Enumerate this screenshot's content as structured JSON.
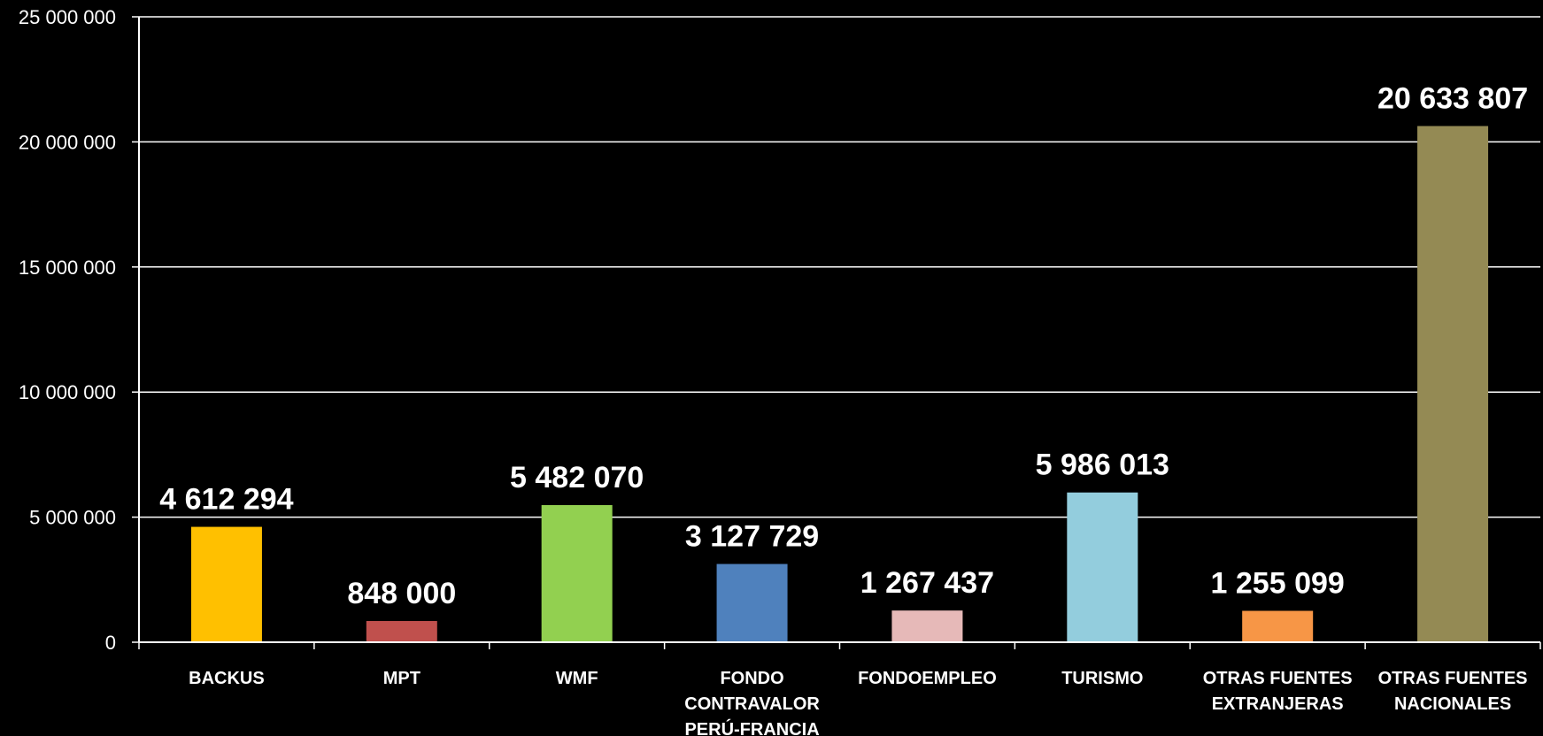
{
  "chart_data": {
    "type": "bar",
    "title": "",
    "xlabel": "",
    "ylabel": "",
    "ylim": [
      0,
      25000000
    ],
    "yticks": [
      0,
      5000000,
      10000000,
      15000000,
      20000000,
      25000000
    ],
    "ytick_labels": [
      "0",
      "5 000 000",
      "10 000 000",
      "15 000 000",
      "20 000 000",
      "25 000 000"
    ],
    "grid": true,
    "legend": "none",
    "categories": [
      [
        "BACKUS"
      ],
      [
        "MPT"
      ],
      [
        "WMF"
      ],
      [
        "FONDO",
        "CONTRAVALOR",
        "PERÚ-FRANCIA"
      ],
      [
        "FONDOEMPLEO"
      ],
      [
        "TURISMO"
      ],
      [
        "OTRAS FUENTES",
        "EXTRANJERAS"
      ],
      [
        "OTRAS FUENTES",
        "NACIONALES"
      ]
    ],
    "values": [
      4612294,
      848000,
      5482070,
      3127729,
      1267437,
      5986013,
      1255099,
      20633807
    ],
    "data_labels": [
      "4 612 294",
      "848 000",
      "5 482 070",
      "3 127 729",
      "1 267 437",
      "5 986 013",
      "1 255 099",
      "20 633 807"
    ],
    "colors": [
      "#FFC000",
      "#C0504D",
      "#92D050",
      "#4F81BD",
      "#E6B9B8",
      "#93CDDD",
      "#F79646",
      "#948A54"
    ],
    "background": "#000000",
    "axis_color": "#ffffff"
  }
}
